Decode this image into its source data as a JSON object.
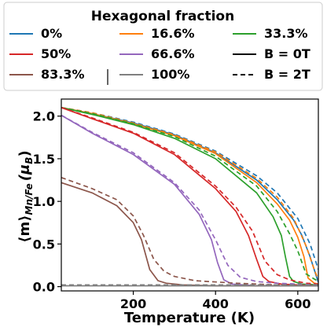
{
  "chart_data": {
    "type": "line",
    "xlabel": "Temperature (K)",
    "ylabel": "⟨m⟩",
    "ylabel_sub": "Mn/Fe",
    "ylabel_unit": "(μ",
    "ylabel_unit_sub": "B",
    "ylabel_unit_close": ")",
    "xlim": [
      25,
      650
    ],
    "ylim": [
      -0.05,
      2.2
    ],
    "xticks": [
      200,
      400,
      600
    ],
    "yticks": [
      0.0,
      0.5,
      1.0,
      1.5,
      2.0
    ],
    "xtick_labels": [
      "200",
      "400",
      "600"
    ],
    "ytick_labels": [
      "0.0",
      "0.5",
      "1.0",
      "1.5",
      "2.0"
    ],
    "grid": false,
    "legend": {
      "title": "Hexagonal fraction",
      "placement": "top",
      "entries": [
        {
          "label": "0%",
          "color": "#1f77b4",
          "style": "solid"
        },
        {
          "label": "16.6%",
          "color": "#ff7f0e",
          "style": "solid"
        },
        {
          "label": "33.3%",
          "color": "#2ca02c",
          "style": "solid"
        },
        {
          "label": "50%",
          "color": "#d62728",
          "style": "solid"
        },
        {
          "label": "66.6%",
          "color": "#9467bd",
          "style": "solid"
        },
        {
          "label": "B = 0T",
          "color": "#000000",
          "style": "solid"
        },
        {
          "label": "83.3%",
          "color": "#8c564b",
          "style": "solid"
        },
        {
          "label": "100%",
          "color": "#7f7f7f",
          "style": "solid"
        },
        {
          "label": "B = 2T",
          "color": "#000000",
          "style": "dashed"
        }
      ]
    },
    "series": [
      {
        "name": "0%",
        "color": "#1f77b4",
        "style": "solid",
        "x": [
          25,
          100,
          200,
          300,
          400,
          500,
          550,
          590,
          610,
          630,
          650
        ],
        "y": [
          2.1,
          2.03,
          1.92,
          1.78,
          1.57,
          1.25,
          1.02,
          0.78,
          0.6,
          0.35,
          0.05
        ]
      },
      {
        "name": "0%",
        "color": "#1f77b4",
        "style": "dashed",
        "x": [
          25,
          100,
          200,
          300,
          400,
          500,
          550,
          600,
          630,
          650
        ],
        "y": [
          2.1,
          2.04,
          1.93,
          1.79,
          1.59,
          1.3,
          1.1,
          0.8,
          0.5,
          0.2
        ]
      },
      {
        "name": "16.6%",
        "color": "#ff7f0e",
        "style": "solid",
        "x": [
          25,
          100,
          200,
          300,
          400,
          500,
          550,
          580,
          600,
          615,
          625,
          640,
          650
        ],
        "y": [
          2.1,
          2.03,
          1.91,
          1.77,
          1.56,
          1.22,
          0.97,
          0.78,
          0.58,
          0.35,
          0.1,
          0.04,
          0.03
        ]
      },
      {
        "name": "16.6%",
        "color": "#ff7f0e",
        "style": "dashed",
        "x": [
          25,
          100,
          200,
          300,
          400,
          500,
          550,
          590,
          620,
          640,
          650
        ],
        "y": [
          2.1,
          2.04,
          1.92,
          1.78,
          1.58,
          1.27,
          1.05,
          0.8,
          0.48,
          0.2,
          0.08
        ]
      },
      {
        "name": "33.3%",
        "color": "#2ca02c",
        "style": "solid",
        "x": [
          25,
          100,
          200,
          300,
          400,
          500,
          540,
          560,
          570,
          580,
          590,
          610,
          650
        ],
        "y": [
          2.1,
          2.02,
          1.9,
          1.74,
          1.5,
          1.1,
          0.82,
          0.6,
          0.35,
          0.12,
          0.06,
          0.03,
          0.02
        ]
      },
      {
        "name": "33.3%",
        "color": "#2ca02c",
        "style": "dashed",
        "x": [
          25,
          100,
          200,
          300,
          400,
          500,
          550,
          580,
          600,
          620,
          650
        ],
        "y": [
          2.1,
          2.03,
          1.91,
          1.76,
          1.53,
          1.18,
          0.88,
          0.62,
          0.42,
          0.15,
          0.06
        ]
      },
      {
        "name": "50%",
        "color": "#d62728",
        "style": "solid",
        "x": [
          25,
          100,
          200,
          300,
          400,
          450,
          480,
          500,
          515,
          530,
          560,
          600,
          650
        ],
        "y": [
          2.1,
          1.97,
          1.8,
          1.55,
          1.15,
          0.88,
          0.6,
          0.32,
          0.12,
          0.06,
          0.03,
          0.02,
          0.01
        ]
      },
      {
        "name": "50%",
        "color": "#d62728",
        "style": "dashed",
        "x": [
          25,
          100,
          200,
          300,
          400,
          450,
          490,
          520,
          550,
          580,
          620,
          650
        ],
        "y": [
          2.1,
          1.98,
          1.81,
          1.57,
          1.18,
          0.93,
          0.65,
          0.3,
          0.14,
          0.08,
          0.04,
          0.03
        ]
      },
      {
        "name": "66.6%",
        "color": "#9467bd",
        "style": "solid",
        "x": [
          25,
          100,
          200,
          300,
          360,
          390,
          405,
          420,
          440,
          500,
          650
        ],
        "y": [
          2.01,
          1.8,
          1.55,
          1.2,
          0.85,
          0.55,
          0.28,
          0.08,
          0.03,
          0.01,
          0.01
        ]
      },
      {
        "name": "66.6%",
        "color": "#9467bd",
        "style": "dashed",
        "x": [
          25,
          100,
          200,
          300,
          360,
          400,
          430,
          460,
          500,
          550,
          650
        ],
        "y": [
          2.01,
          1.81,
          1.57,
          1.22,
          0.9,
          0.55,
          0.25,
          0.11,
          0.06,
          0.04,
          0.02
        ]
      },
      {
        "name": "83.3%",
        "color": "#8c564b",
        "style": "solid",
        "x": [
          25,
          100,
          160,
          200,
          220,
          240,
          260,
          280,
          320,
          400,
          650
        ],
        "y": [
          1.22,
          1.1,
          0.95,
          0.75,
          0.55,
          0.2,
          0.07,
          0.04,
          0.02,
          0.01,
          0.01
        ]
      },
      {
        "name": "83.3%",
        "color": "#8c564b",
        "style": "dashed",
        "x": [
          25,
          100,
          160,
          200,
          225,
          250,
          275,
          300,
          350,
          450,
          550,
          650
        ],
        "y": [
          1.28,
          1.15,
          1.02,
          0.83,
          0.6,
          0.32,
          0.18,
          0.12,
          0.07,
          0.04,
          0.02,
          0.02
        ]
      },
      {
        "name": "100%",
        "color": "#7f7f7f",
        "style": "solid",
        "x": [
          25,
          650
        ],
        "y": [
          0.01,
          0.01
        ]
      },
      {
        "name": "100%",
        "color": "#7f7f7f",
        "style": "dashed",
        "x": [
          25,
          650
        ],
        "y": [
          0.02,
          0.02
        ]
      }
    ]
  }
}
